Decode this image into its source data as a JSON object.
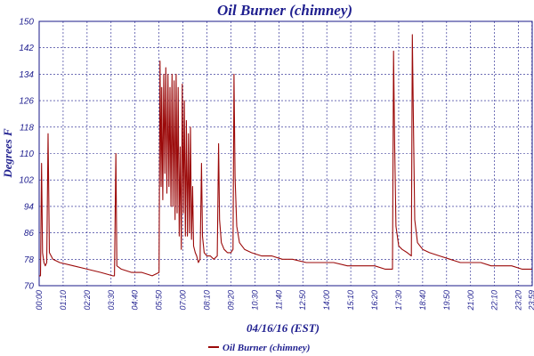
{
  "chart_data": {
    "type": "line",
    "title": "Oil Burner (chimney)",
    "xlabel": "04/16/16 (EST)",
    "ylabel": "Degrees F",
    "ylim": [
      70,
      150
    ],
    "yticks": [
      70,
      78,
      86,
      94,
      102,
      110,
      118,
      126,
      134,
      142,
      150
    ],
    "xlim": [
      0,
      1440
    ],
    "x_unit": "minutes since 00:00",
    "xticks": [
      {
        "t": 0,
        "label": "00:00"
      },
      {
        "t": 70,
        "label": "01:10"
      },
      {
        "t": 140,
        "label": "02:20"
      },
      {
        "t": 210,
        "label": "03:30"
      },
      {
        "t": 280,
        "label": "04:40"
      },
      {
        "t": 350,
        "label": "05:50"
      },
      {
        "t": 420,
        "label": "07:00"
      },
      {
        "t": 490,
        "label": "08:10"
      },
      {
        "t": 560,
        "label": "09:20"
      },
      {
        "t": 630,
        "label": "10:30"
      },
      {
        "t": 700,
        "label": "11:40"
      },
      {
        "t": 770,
        "label": "12:50"
      },
      {
        "t": 840,
        "label": "14:00"
      },
      {
        "t": 910,
        "label": "15:10"
      },
      {
        "t": 980,
        "label": "16:20"
      },
      {
        "t": 1050,
        "label": "17:30"
      },
      {
        "t": 1120,
        "label": "18:40"
      },
      {
        "t": 1190,
        "label": "19:50"
      },
      {
        "t": 1260,
        "label": "21:00"
      },
      {
        "t": 1330,
        "label": "22:10"
      },
      {
        "t": 1400,
        "label": "23:20"
      },
      {
        "t": 1439,
        "label": "23:59"
      }
    ],
    "grid": true,
    "legend": "bottom-center",
    "series": [
      {
        "name": "Oil Burner (chimney)",
        "color": "#9b0a0a",
        "points": [
          [
            0,
            73
          ],
          [
            4,
            73
          ],
          [
            7,
            107
          ],
          [
            10,
            80
          ],
          [
            14,
            77
          ],
          [
            18,
            76
          ],
          [
            22,
            77
          ],
          [
            26,
            116
          ],
          [
            30,
            80
          ],
          [
            40,
            78
          ],
          [
            60,
            77
          ],
          [
            100,
            76
          ],
          [
            140,
            75
          ],
          [
            180,
            74
          ],
          [
            215,
            73
          ],
          [
            220,
            73
          ],
          [
            224,
            110
          ],
          [
            227,
            76
          ],
          [
            240,
            75
          ],
          [
            270,
            74
          ],
          [
            300,
            74
          ],
          [
            330,
            73
          ],
          [
            350,
            74
          ],
          [
            353,
            138
          ],
          [
            356,
            100
          ],
          [
            358,
            130
          ],
          [
            361,
            96
          ],
          [
            364,
            134
          ],
          [
            367,
            104
          ],
          [
            370,
            136
          ],
          [
            373,
            98
          ],
          [
            376,
            134
          ],
          [
            379,
            100
          ],
          [
            382,
            130
          ],
          [
            385,
            94
          ],
          [
            388,
            134
          ],
          [
            391,
            94
          ],
          [
            394,
            132
          ],
          [
            397,
            90
          ],
          [
            400,
            134
          ],
          [
            403,
            92
          ],
          [
            406,
            130
          ],
          [
            409,
            85
          ],
          [
            412,
            112
          ],
          [
            415,
            81
          ],
          [
            418,
            131
          ],
          [
            421,
            92
          ],
          [
            424,
            126
          ],
          [
            427,
            85
          ],
          [
            430,
            120
          ],
          [
            433,
            85
          ],
          [
            436,
            116
          ],
          [
            439,
            86
          ],
          [
            442,
            118
          ],
          [
            445,
            84
          ],
          [
            448,
            100
          ],
          [
            451,
            82
          ],
          [
            456,
            80
          ],
          [
            460,
            79
          ],
          [
            465,
            77
          ],
          [
            470,
            78
          ],
          [
            474,
            107
          ],
          [
            477,
            85
          ],
          [
            482,
            80
          ],
          [
            490,
            79
          ],
          [
            500,
            79
          ],
          [
            510,
            78
          ],
          [
            520,
            79
          ],
          [
            524,
            113
          ],
          [
            527,
            90
          ],
          [
            532,
            83
          ],
          [
            540,
            81
          ],
          [
            550,
            80
          ],
          [
            560,
            80
          ],
          [
            566,
            81
          ],
          [
            569,
            134
          ],
          [
            572,
            103
          ],
          [
            577,
            88
          ],
          [
            585,
            83
          ],
          [
            600,
            81
          ],
          [
            620,
            80
          ],
          [
            650,
            79
          ],
          [
            680,
            79
          ],
          [
            710,
            78
          ],
          [
            740,
            78
          ],
          [
            780,
            77
          ],
          [
            820,
            77
          ],
          [
            860,
            77
          ],
          [
            900,
            76
          ],
          [
            940,
            76
          ],
          [
            980,
            76
          ],
          [
            1010,
            75
          ],
          [
            1032,
            75
          ],
          [
            1035,
            141
          ],
          [
            1038,
            115
          ],
          [
            1042,
            88
          ],
          [
            1050,
            82
          ],
          [
            1060,
            81
          ],
          [
            1075,
            80
          ],
          [
            1087,
            79
          ],
          [
            1090,
            146
          ],
          [
            1093,
            120
          ],
          [
            1097,
            90
          ],
          [
            1105,
            83
          ],
          [
            1120,
            81
          ],
          [
            1140,
            80
          ],
          [
            1170,
            79
          ],
          [
            1200,
            78
          ],
          [
            1230,
            77
          ],
          [
            1260,
            77
          ],
          [
            1290,
            77
          ],
          [
            1320,
            76
          ],
          [
            1350,
            76
          ],
          [
            1380,
            76
          ],
          [
            1410,
            75
          ],
          [
            1439,
            75
          ]
        ]
      }
    ]
  }
}
